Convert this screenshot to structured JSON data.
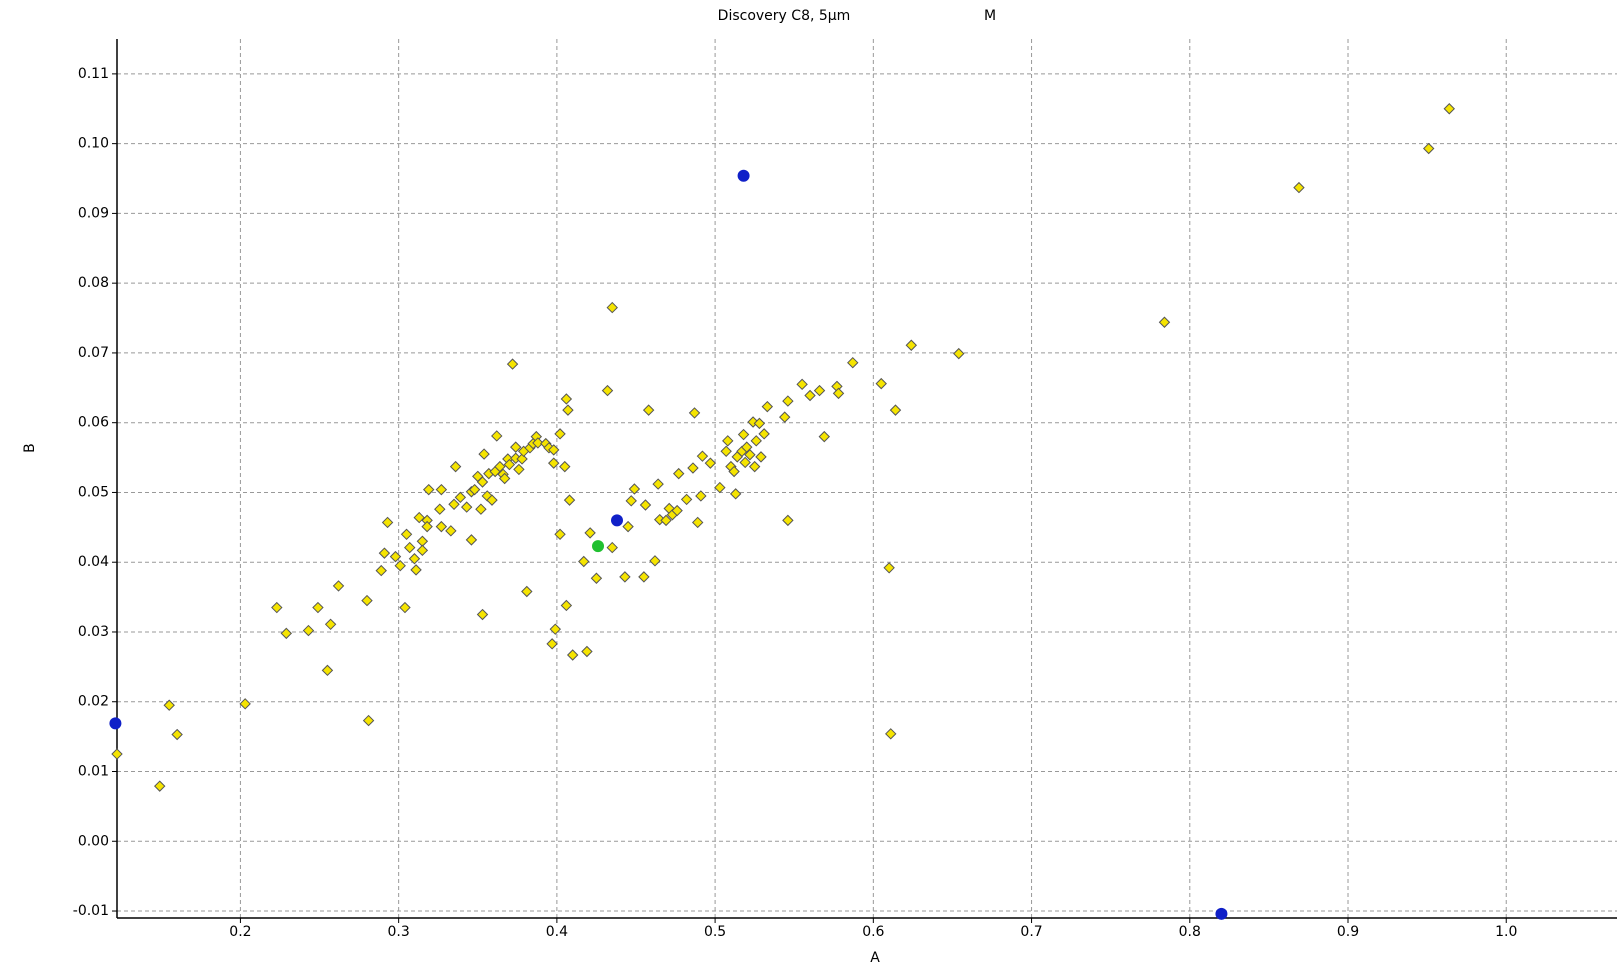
{
  "chart_data": {
    "type": "scatter",
    "title": "Discovery C8, 5µm",
    "subtitle": "M",
    "x_label": "A",
    "y_label": "B",
    "xlim": [
      0.122,
      1.07
    ],
    "ylim": [
      -0.011,
      0.115
    ],
    "xticks": [
      0.2,
      0.3,
      0.4,
      0.5,
      0.6,
      0.7,
      0.8,
      0.9,
      {
        "value": 1,
        "label": "1.0"
      }
    ],
    "yticks": [
      -0.01,
      {
        "value": 0,
        "label": "0.00"
      },
      0.01,
      0.02,
      0.03,
      0.04,
      0.05,
      0.06,
      0.07,
      0.08,
      0.09,
      {
        "value": 0.1,
        "label": "0.10"
      },
      0.11
    ],
    "grid": true,
    "series": [
      {
        "color": "#f5e400",
        "marker": "diamond",
        "x": [
          0.122,
          0.149,
          0.155,
          0.16,
          0.203,
          0.223,
          0.229,
          0.243,
          0.249,
          0.255,
          0.257,
          0.262,
          0.28,
          0.281,
          0.289,
          0.291,
          0.293,
          0.298,
          0.301,
          0.304,
          0.305,
          0.307,
          0.31,
          0.311,
          0.313,
          0.315,
          0.315,
          0.318,
          0.318,
          0.319,
          0.326,
          0.327,
          0.327,
          0.333,
          0.335,
          0.336,
          0.339,
          0.343,
          0.346,
          0.346,
          0.348,
          0.35,
          0.352,
          0.353,
          0.353,
          0.354,
          0.356,
          0.357,
          0.359,
          0.361,
          0.362,
          0.364,
          0.366,
          0.367,
          0.369,
          0.37,
          0.372,
          0.374,
          0.374,
          0.376,
          0.378,
          0.379,
          0.381,
          0.383,
          0.385,
          0.387,
          0.388,
          0.393,
          0.395,
          0.397,
          0.398,
          0.398,
          0.399,
          0.402,
          0.402,
          0.405,
          0.406,
          0.406,
          0.407,
          0.408,
          0.41,
          0.417,
          0.419,
          0.421,
          0.425,
          0.432,
          0.435,
          0.435,
          0.443,
          0.445,
          0.447,
          0.449,
          0.455,
          0.456,
          0.458,
          0.462,
          0.464,
          0.465,
          0.469,
          0.471,
          0.473,
          0.476,
          0.477,
          0.482,
          0.486,
          0.487,
          0.489,
          0.491,
          0.492,
          0.497,
          0.503,
          0.507,
          0.508,
          0.51,
          0.512,
          0.513,
          0.514,
          0.517,
          0.518,
          0.519,
          0.52,
          0.522,
          0.524,
          0.525,
          0.526,
          0.528,
          0.529,
          0.531,
          0.533,
          0.544,
          0.546,
          0.546,
          0.555,
          0.56,
          0.566,
          0.569,
          0.577,
          0.578,
          0.587,
          0.605,
          0.61,
          0.611,
          0.614,
          0.624,
          0.654,
          0.784,
          0.869,
          0.951,
          0.964
        ],
        "values": [
          0.0125,
          0.0079,
          0.0195,
          0.0153,
          0.0197,
          0.0335,
          0.0298,
          0.0302,
          0.0335,
          0.0245,
          0.0311,
          0.0366,
          0.0345,
          0.0173,
          0.0388,
          0.0413,
          0.0457,
          0.0408,
          0.0395,
          0.0335,
          0.044,
          0.0421,
          0.0405,
          0.0389,
          0.0464,
          0.043,
          0.0417,
          0.046,
          0.0451,
          0.0504,
          0.0476,
          0.0504,
          0.0451,
          0.0445,
          0.0483,
          0.0537,
          0.0493,
          0.0479,
          0.0501,
          0.0432,
          0.0504,
          0.0523,
          0.0476,
          0.0325,
          0.0515,
          0.0555,
          0.0495,
          0.0527,
          0.0489,
          0.053,
          0.0581,
          0.0537,
          0.0526,
          0.052,
          0.0548,
          0.054,
          0.0684,
          0.0565,
          0.0549,
          0.0533,
          0.0548,
          0.0559,
          0.0358,
          0.0564,
          0.057,
          0.058,
          0.0571,
          0.057,
          0.0564,
          0.0283,
          0.0561,
          0.0542,
          0.0304,
          0.044,
          0.0584,
          0.0537,
          0.0338,
          0.0634,
          0.0618,
          0.0489,
          0.0267,
          0.0401,
          0.0272,
          0.0442,
          0.0377,
          0.0646,
          0.0421,
          0.0765,
          0.0379,
          0.0451,
          0.0488,
          0.0505,
          0.0379,
          0.0482,
          0.0618,
          0.0402,
          0.0512,
          0.0461,
          0.046,
          0.0477,
          0.0468,
          0.0474,
          0.0527,
          0.049,
          0.0535,
          0.0614,
          0.0457,
          0.0495,
          0.0552,
          0.0542,
          0.0507,
          0.0559,
          0.0574,
          0.0537,
          0.053,
          0.0498,
          0.0551,
          0.0559,
          0.0583,
          0.0543,
          0.0565,
          0.0554,
          0.0601,
          0.0537,
          0.0574,
          0.0599,
          0.0551,
          0.0584,
          0.0623,
          0.0608,
          0.0631,
          0.046,
          0.0655,
          0.0639,
          0.0646,
          0.058,
          0.0652,
          0.0642,
          0.0686,
          0.0656,
          0.0392,
          0.0154,
          0.0618,
          0.0711,
          0.0699,
          0.0744,
          0.0937,
          0.0993,
          0.105
        ]
      },
      {
        "color": "#1020c8",
        "marker": "circle",
        "x": [
          0.121,
          0.438,
          0.518,
          0.82
        ],
        "values": [
          0.0169,
          0.046,
          0.0954,
          -0.0104
        ]
      },
      {
        "color": "#20c030",
        "marker": "circle",
        "x": [
          0.426
        ],
        "values": [
          0.0423
        ]
      }
    ]
  }
}
